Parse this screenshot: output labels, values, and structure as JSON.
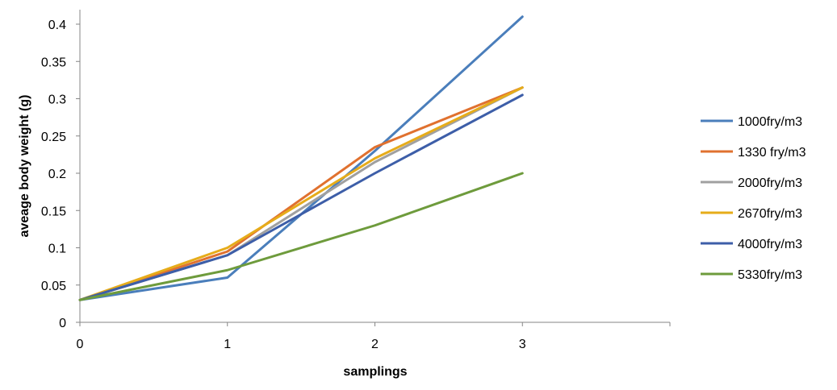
{
  "chart_data": {
    "type": "line",
    "xlabel": "samplings",
    "ylabel": "aveage body weight (g)",
    "x": [
      0,
      1,
      2,
      3
    ],
    "xlim": [
      0,
      4
    ],
    "ylim": [
      0,
      0.4
    ],
    "x_ticks": [
      "0",
      "1",
      "2",
      "3"
    ],
    "y_ticks": [
      "0",
      "0.05",
      "0.1",
      "0.15",
      "0.2",
      "0.25",
      "0.3",
      "0.35",
      "0.4"
    ],
    "grid": false,
    "legend_position": "right",
    "series": [
      {
        "name": "1000fry/m3",
        "color": "#4a7ebb",
        "values": [
          0.03,
          0.06,
          0.23,
          0.41
        ]
      },
      {
        "name": "1330 fry/m3",
        "color": "#e0712f",
        "values": [
          0.03,
          0.095,
          0.235,
          0.315
        ]
      },
      {
        "name": "2000fry/m3",
        "color": "#a0a0a0",
        "values": [
          0.03,
          0.09,
          0.215,
          0.315
        ]
      },
      {
        "name": "2670fry/m3",
        "color": "#e6ac1a",
        "values": [
          0.03,
          0.1,
          0.22,
          0.315
        ]
      },
      {
        "name": "4000fry/m3",
        "color": "#3d5ea8",
        "values": [
          0.03,
          0.09,
          0.2,
          0.305
        ]
      },
      {
        "name": "5330fry/m3",
        "color": "#6e9b3c",
        "values": [
          0.03,
          0.07,
          0.13,
          0.2
        ]
      }
    ]
  }
}
